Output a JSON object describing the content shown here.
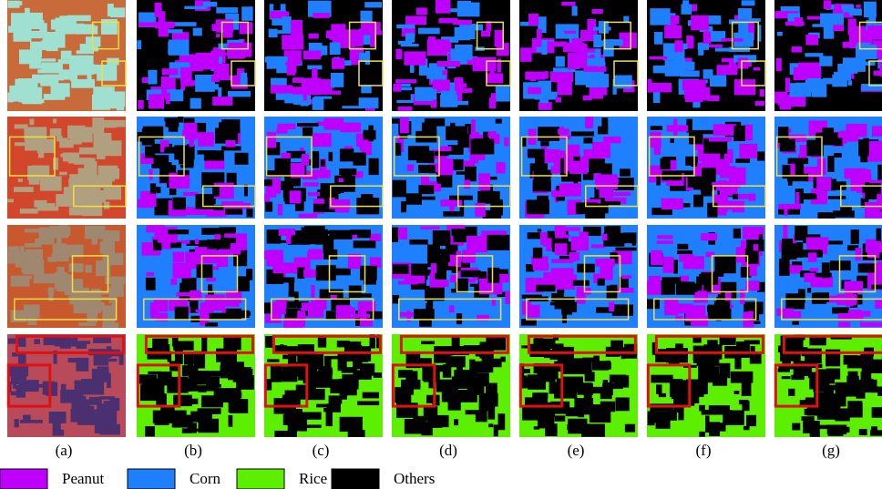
{
  "panels": [
    "(a)",
    "(b)",
    "(c)",
    "(d)",
    "(e)",
    "(f)",
    "(g)"
  ],
  "legend": [
    {
      "label": "Peanut",
      "color": "#c000ff"
    },
    {
      "label": "Corn",
      "color": "#1e7fff"
    },
    {
      "label": "Rice",
      "color": "#5cf000"
    },
    {
      "label": "Others",
      "color": "#000000"
    }
  ]
}
